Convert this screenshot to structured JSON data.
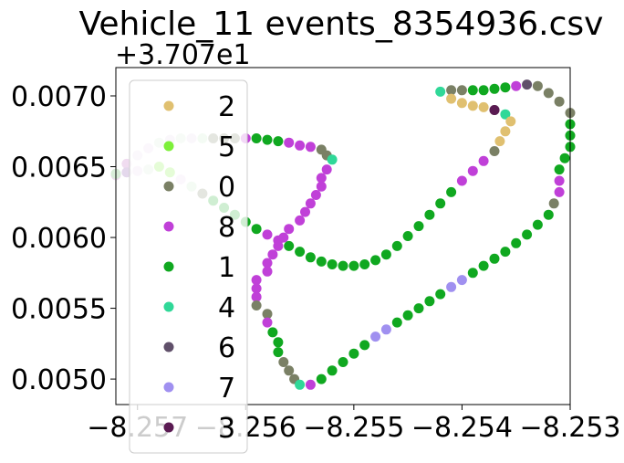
{
  "chart_data": {
    "type": "scatter",
    "title": "Vehicle_11 events_8354936.csv",
    "xlabel": "",
    "ylabel": "",
    "y_offset_label": "+3.707e1",
    "xlim": [
      -8.2572,
      -8.253
    ],
    "ylim": [
      0.00482,
      0.0072
    ],
    "grid": false,
    "legend_position": "upper-left",
    "x_ticks": [
      -8.257,
      -8.256,
      -8.255,
      -8.254,
      -8.253
    ],
    "x_tick_labels": [
      "−8.257",
      "−8.256",
      "−8.255",
      "−8.254",
      "−8.253"
    ],
    "y_ticks": [
      0.005,
      0.0055,
      0.006,
      0.0065,
      0.007
    ],
    "y_tick_labels": [
      "0.0050",
      "0.0055",
      "0.0060",
      "0.0065",
      "0.0070"
    ],
    "legend": [
      {
        "name": "2",
        "color": "#e0c070"
      },
      {
        "name": "5",
        "color": "#7df03a"
      },
      {
        "name": "0",
        "color": "#7a8065"
      },
      {
        "name": "8",
        "color": "#c040d8"
      },
      {
        "name": "1",
        "color": "#10a820"
      },
      {
        "name": "4",
        "color": "#30d898"
      },
      {
        "name": "6",
        "color": "#60506a"
      },
      {
        "name": "7",
        "color": "#a090f0"
      },
      {
        "name": "3",
        "color": "#5a1a52"
      }
    ],
    "points": [
      {
        "x": -8.2572,
        "y": 0.00644,
        "color": "#f0dcf0"
      },
      {
        "x": -8.2571,
        "y": 0.00652,
        "color": "#f0dcf0"
      },
      {
        "x": -8.257,
        "y": 0.00658,
        "color": "#e8dcef"
      },
      {
        "x": -8.2569,
        "y": 0.00663,
        "color": "#ecd8f0"
      },
      {
        "x": -8.2568,
        "y": 0.00667,
        "color": "#d8ecd8"
      },
      {
        "x": -8.2567,
        "y": 0.00669,
        "color": "#e4d8ec"
      },
      {
        "x": -8.2566,
        "y": 0.0067,
        "color": "#d8ecd8"
      },
      {
        "x": -8.2565,
        "y": 0.0067,
        "color": "#e4d8ec"
      },
      {
        "x": -8.2564,
        "y": 0.0067,
        "color": "#c8e8c8"
      },
      {
        "x": -8.2563,
        "y": 0.0067,
        "color": "#7a8065"
      },
      {
        "x": -8.2562,
        "y": 0.0067,
        "color": "#7a8065"
      },
      {
        "x": -8.2561,
        "y": 0.0067,
        "color": "#7a8065"
      },
      {
        "x": -8.256,
        "y": 0.0067,
        "color": "#c040d8"
      },
      {
        "x": -8.2559,
        "y": 0.0067,
        "color": "#10a820"
      },
      {
        "x": -8.2558,
        "y": 0.00669,
        "color": "#10a820"
      },
      {
        "x": -8.2557,
        "y": 0.00668,
        "color": "#10a820"
      },
      {
        "x": -8.2556,
        "y": 0.00667,
        "color": "#c040d8"
      },
      {
        "x": -8.2555,
        "y": 0.00665,
        "color": "#c040d8"
      },
      {
        "x": -8.2554,
        "y": 0.00664,
        "color": "#c040d8"
      },
      {
        "x": -8.2553,
        "y": 0.00662,
        "color": "#7a8065"
      },
      {
        "x": -8.25525,
        "y": 0.00658,
        "color": "#7a8065"
      },
      {
        "x": -8.2552,
        "y": 0.00655,
        "color": "#30d898"
      },
      {
        "x": -8.25525,
        "y": 0.00648,
        "color": "#c040d8"
      },
      {
        "x": -8.2553,
        "y": 0.00642,
        "color": "#c040d8"
      },
      {
        "x": -8.2553,
        "y": 0.00636,
        "color": "#c040d8"
      },
      {
        "x": -8.25535,
        "y": 0.0063,
        "color": "#c040d8"
      },
      {
        "x": -8.2554,
        "y": 0.00624,
        "color": "#c040d8"
      },
      {
        "x": -8.25545,
        "y": 0.00618,
        "color": "#c040d8"
      },
      {
        "x": -8.2555,
        "y": 0.00612,
        "color": "#c040d8"
      },
      {
        "x": -8.2556,
        "y": 0.00606,
        "color": "#c040d8"
      },
      {
        "x": -8.25565,
        "y": 0.006,
        "color": "#c040d8"
      },
      {
        "x": -8.2557,
        "y": 0.00594,
        "color": "#c040d8"
      },
      {
        "x": -8.25575,
        "y": 0.00588,
        "color": "#c040d8"
      },
      {
        "x": -8.2558,
        "y": 0.00582,
        "color": "#c040d8"
      },
      {
        "x": -8.2558,
        "y": 0.00576,
        "color": "#c040d8"
      },
      {
        "x": -8.2559,
        "y": 0.0057,
        "color": "#c040d8"
      },
      {
        "x": -8.2559,
        "y": 0.00564,
        "color": "#c040d8"
      },
      {
        "x": -8.2559,
        "y": 0.00558,
        "color": "#c040d8"
      },
      {
        "x": -8.2559,
        "y": 0.00552,
        "color": "#7a8065"
      },
      {
        "x": -8.2558,
        "y": 0.00546,
        "color": "#7a8065"
      },
      {
        "x": -8.2558,
        "y": 0.0054,
        "color": "#c040d8"
      },
      {
        "x": -8.25575,
        "y": 0.00533,
        "color": "#10a820"
      },
      {
        "x": -8.2557,
        "y": 0.00526,
        "color": "#10a820"
      },
      {
        "x": -8.2557,
        "y": 0.00519,
        "color": "#10a820"
      },
      {
        "x": -8.25565,
        "y": 0.00512,
        "color": "#7a8065"
      },
      {
        "x": -8.2556,
        "y": 0.00506,
        "color": "#7a8065"
      },
      {
        "x": -8.25555,
        "y": 0.005,
        "color": "#7a8065"
      },
      {
        "x": -8.2555,
        "y": 0.00496,
        "color": "#30d898"
      },
      {
        "x": -8.2554,
        "y": 0.00496,
        "color": "#c040d8"
      },
      {
        "x": -8.2553,
        "y": 0.005,
        "color": "#10a820"
      },
      {
        "x": -8.2552,
        "y": 0.00506,
        "color": "#10a820"
      },
      {
        "x": -8.2551,
        "y": 0.00512,
        "color": "#10a820"
      },
      {
        "x": -8.255,
        "y": 0.00518,
        "color": "#10a820"
      },
      {
        "x": -8.2549,
        "y": 0.00524,
        "color": "#10a820"
      },
      {
        "x": -8.2548,
        "y": 0.0053,
        "color": "#a090f0"
      },
      {
        "x": -8.2547,
        "y": 0.00535,
        "color": "#a090f0"
      },
      {
        "x": -8.2546,
        "y": 0.0054,
        "color": "#10a820"
      },
      {
        "x": -8.2545,
        "y": 0.00545,
        "color": "#10a820"
      },
      {
        "x": -8.2544,
        "y": 0.0055,
        "color": "#10a820"
      },
      {
        "x": -8.2543,
        "y": 0.00555,
        "color": "#10a820"
      },
      {
        "x": -8.2542,
        "y": 0.0056,
        "color": "#10a820"
      },
      {
        "x": -8.2541,
        "y": 0.00565,
        "color": "#a090f0"
      },
      {
        "x": -8.254,
        "y": 0.0057,
        "color": "#a090f0"
      },
      {
        "x": -8.2539,
        "y": 0.00575,
        "color": "#10a820"
      },
      {
        "x": -8.2538,
        "y": 0.0058,
        "color": "#10a820"
      },
      {
        "x": -8.2537,
        "y": 0.00585,
        "color": "#10a820"
      },
      {
        "x": -8.2536,
        "y": 0.0059,
        "color": "#10a820"
      },
      {
        "x": -8.2535,
        "y": 0.00596,
        "color": "#10a820"
      },
      {
        "x": -8.2534,
        "y": 0.00602,
        "color": "#10a820"
      },
      {
        "x": -8.2533,
        "y": 0.00609,
        "color": "#10a820"
      },
      {
        "x": -8.2532,
        "y": 0.00616,
        "color": "#10a820"
      },
      {
        "x": -8.25315,
        "y": 0.00624,
        "color": "#7a8065"
      },
      {
        "x": -8.2531,
        "y": 0.00632,
        "color": "#c040d8"
      },
      {
        "x": -8.2531,
        "y": 0.0064,
        "color": "#c040d8"
      },
      {
        "x": -8.2531,
        "y": 0.00648,
        "color": "#10a820"
      },
      {
        "x": -8.25305,
        "y": 0.00656,
        "color": "#10a820"
      },
      {
        "x": -8.253,
        "y": 0.00664,
        "color": "#10a820"
      },
      {
        "x": -8.253,
        "y": 0.00672,
        "color": "#10a820"
      },
      {
        "x": -8.253,
        "y": 0.0068,
        "color": "#10a820"
      },
      {
        "x": -8.253,
        "y": 0.00688,
        "color": "#7a8065"
      },
      {
        "x": -8.2531,
        "y": 0.00696,
        "color": "#7a8065"
      },
      {
        "x": -8.2532,
        "y": 0.00702,
        "color": "#7a8065"
      },
      {
        "x": -8.2533,
        "y": 0.00707,
        "color": "#7a8065"
      },
      {
        "x": -8.2534,
        "y": 0.00708,
        "color": "#60506a"
      },
      {
        "x": -8.2535,
        "y": 0.00707,
        "color": "#c040d8"
      },
      {
        "x": -8.2536,
        "y": 0.00706,
        "color": "#10a820"
      },
      {
        "x": -8.2537,
        "y": 0.00705,
        "color": "#10a820"
      },
      {
        "x": -8.2538,
        "y": 0.00704,
        "color": "#10a820"
      },
      {
        "x": -8.2539,
        "y": 0.00704,
        "color": "#10a820"
      },
      {
        "x": -8.254,
        "y": 0.00704,
        "color": "#7a8065"
      },
      {
        "x": -8.2541,
        "y": 0.00704,
        "color": "#7a8065"
      },
      {
        "x": -8.2542,
        "y": 0.00703,
        "color": "#30d898"
      },
      {
        "x": -8.2541,
        "y": 0.00698,
        "color": "#e0c070"
      },
      {
        "x": -8.254,
        "y": 0.00695,
        "color": "#e0c070"
      },
      {
        "x": -8.2539,
        "y": 0.00693,
        "color": "#e0c070"
      },
      {
        "x": -8.2538,
        "y": 0.00692,
        "color": "#e0c070"
      },
      {
        "x": -8.2537,
        "y": 0.0069,
        "color": "#7a8065"
      },
      {
        "x": -8.2536,
        "y": 0.00687,
        "color": "#30d898"
      },
      {
        "x": -8.25355,
        "y": 0.00682,
        "color": "#e0c070"
      },
      {
        "x": -8.2536,
        "y": 0.00675,
        "color": "#e0c070"
      },
      {
        "x": -8.25365,
        "y": 0.00668,
        "color": "#e0c070"
      },
      {
        "x": -8.2537,
        "y": 0.00661,
        "color": "#7a8065"
      },
      {
        "x": -8.2538,
        "y": 0.00654,
        "color": "#c040d8"
      },
      {
        "x": -8.2539,
        "y": 0.00647,
        "color": "#c040d8"
      },
      {
        "x": -8.254,
        "y": 0.0064,
        "color": "#c040d8"
      },
      {
        "x": -8.2541,
        "y": 0.00632,
        "color": "#10a820"
      },
      {
        "x": -8.2542,
        "y": 0.00624,
        "color": "#10a820"
      },
      {
        "x": -8.2543,
        "y": 0.00616,
        "color": "#10a820"
      },
      {
        "x": -8.2544,
        "y": 0.00608,
        "color": "#10a820"
      },
      {
        "x": -8.2545,
        "y": 0.00601,
        "color": "#10a820"
      },
      {
        "x": -8.2546,
        "y": 0.00594,
        "color": "#10a820"
      },
      {
        "x": -8.2547,
        "y": 0.00588,
        "color": "#10a820"
      },
      {
        "x": -8.2548,
        "y": 0.00584,
        "color": "#10a820"
      },
      {
        "x": -8.2549,
        "y": 0.00581,
        "color": "#10a820"
      },
      {
        "x": -8.255,
        "y": 0.0058,
        "color": "#10a820"
      },
      {
        "x": -8.2551,
        "y": 0.0058,
        "color": "#10a820"
      },
      {
        "x": -8.2552,
        "y": 0.00581,
        "color": "#10a820"
      },
      {
        "x": -8.2553,
        "y": 0.00583,
        "color": "#10a820"
      },
      {
        "x": -8.2554,
        "y": 0.00586,
        "color": "#10a820"
      },
      {
        "x": -8.2555,
        "y": 0.0059,
        "color": "#10a820"
      },
      {
        "x": -8.2556,
        "y": 0.00594,
        "color": "#10a820"
      },
      {
        "x": -8.2557,
        "y": 0.00598,
        "color": "#c040d8"
      },
      {
        "x": -8.2558,
        "y": 0.00602,
        "color": "#c040d8"
      },
      {
        "x": -8.2559,
        "y": 0.00606,
        "color": "#10a820"
      },
      {
        "x": -8.256,
        "y": 0.00611,
        "color": "#10a820"
      },
      {
        "x": -8.2561,
        "y": 0.00616,
        "color": "#10a820"
      },
      {
        "x": -8.2562,
        "y": 0.00621,
        "color": "#10a820"
      },
      {
        "x": -8.2563,
        "y": 0.00626,
        "color": "#10a820"
      },
      {
        "x": -8.2564,
        "y": 0.00631,
        "color": "#7a8065"
      },
      {
        "x": -8.2565,
        "y": 0.00636,
        "color": "#c8e8c8"
      },
      {
        "x": -8.2566,
        "y": 0.00641,
        "color": "#ecd8f0"
      },
      {
        "x": -8.2567,
        "y": 0.00646,
        "color": "#7df03a"
      },
      {
        "x": -8.2568,
        "y": 0.0065,
        "color": "#7df03a"
      },
      {
        "x": -8.2569,
        "y": 0.00648,
        "color": "#d8ecd8"
      },
      {
        "x": -8.257,
        "y": 0.00647,
        "color": "#ecd8f0"
      },
      {
        "x": -8.2571,
        "y": 0.00646,
        "color": "#e4d8ec"
      },
      {
        "x": -8.2572,
        "y": 0.00645,
        "color": "#d8ecd8"
      },
      {
        "x": -8.2537,
        "y": 0.0069,
        "color": "#5a1a52"
      }
    ]
  }
}
